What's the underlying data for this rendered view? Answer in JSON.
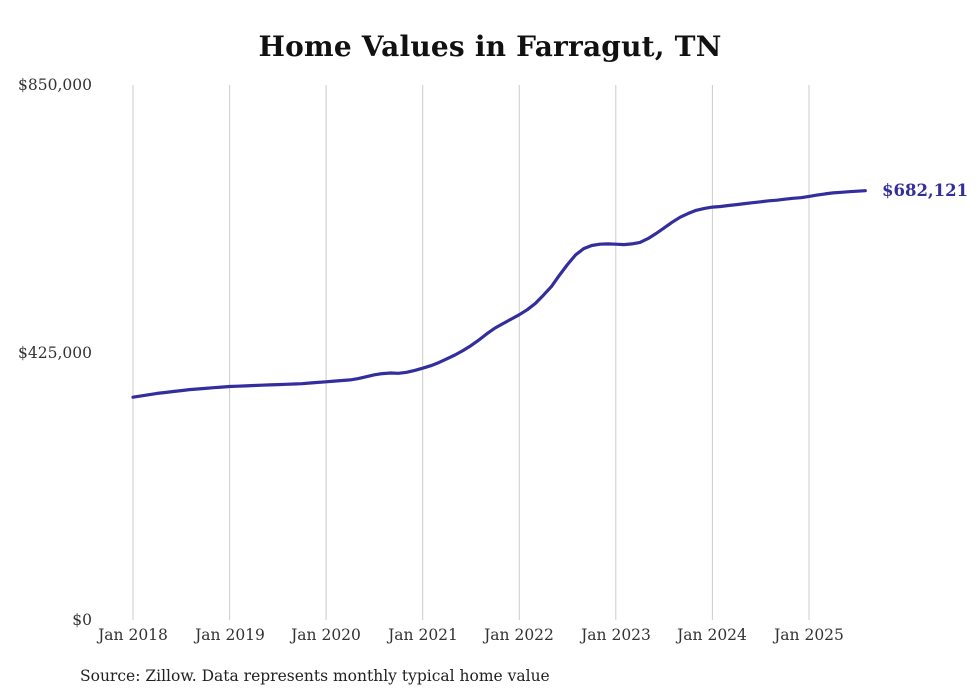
{
  "chart_data": {
    "type": "line",
    "title": "Home Values in Farragut, TN",
    "source_note": "Source: Zillow. Data represents monthly typical home value",
    "end_label": "$682,121",
    "line_color": "#332e9e",
    "grid_color": "#cccccc",
    "grid": "vertical-only",
    "legend": "none",
    "ylim": [
      0,
      850000
    ],
    "ylabel": "",
    "xlabel": "",
    "y_ticks": [
      {
        "label": "$850,000",
        "value": 850000
      },
      {
        "label": "$425,000",
        "value": 425000
      },
      {
        "label": "$0",
        "value": 0
      }
    ],
    "x_ticks": [
      {
        "label": "Jan 2018",
        "month_index": 0
      },
      {
        "label": "Jan 2019",
        "month_index": 12
      },
      {
        "label": "Jan 2020",
        "month_index": 24
      },
      {
        "label": "Jan 2021",
        "month_index": 36
      },
      {
        "label": "Jan 2022",
        "month_index": 48
      },
      {
        "label": "Jan 2023",
        "month_index": 60
      },
      {
        "label": "Jan 2024",
        "month_index": 72
      },
      {
        "label": "Jan 2025",
        "month_index": 84
      }
    ],
    "series": [
      {
        "name": "Monthly typical home value",
        "start_month": "2018-01",
        "values": [
          354000,
          356000,
          358000,
          360000,
          361500,
          363000,
          364500,
          366000,
          367000,
          368000,
          369000,
          370000,
          371000,
          371500,
          372000,
          372500,
          373000,
          373500,
          374000,
          374500,
          375000,
          375500,
          376500,
          377500,
          378500,
          379500,
          380500,
          381500,
          383500,
          386500,
          389500,
          391500,
          392500,
          392000,
          393500,
          396500,
          400000,
          404000,
          409000,
          415000,
          421000,
          428000,
          436000,
          445000,
          455000,
          464000,
          471000,
          478000,
          485000,
          493000,
          503000,
          516000,
          530000,
          548000,
          565000,
          580000,
          590000,
          595000,
          597000,
          597500,
          597000,
          596500,
          597500,
          600000,
          606000,
          614000,
          623000,
          632000,
          640000,
          646000,
          651000,
          654000,
          656000,
          657000,
          658500,
          660000,
          661500,
          663000,
          664500,
          666000,
          667000,
          668500,
          670000,
          671000,
          673000,
          675000,
          677000,
          678500,
          679500,
          680500,
          681300,
          682121
        ]
      }
    ]
  }
}
